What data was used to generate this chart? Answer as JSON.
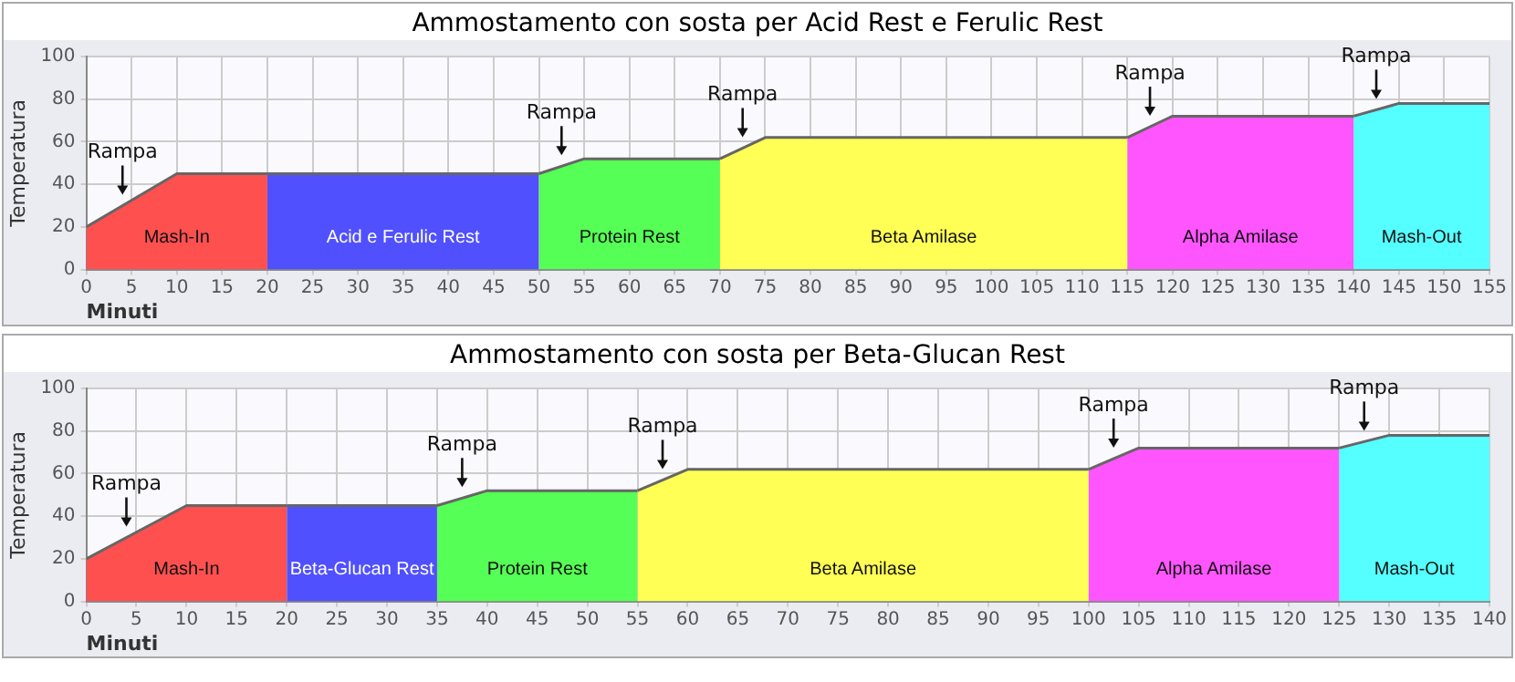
{
  "chart_data": [
    {
      "type": "area",
      "title": "Ammostamento con sosta per Acid Rest e Ferulic Rest",
      "xlabel": "Minuti",
      "ylabel": "Temperatura",
      "xlim": [
        0,
        155
      ],
      "xticks": [
        0,
        5,
        10,
        15,
        20,
        25,
        30,
        35,
        40,
        45,
        50,
        55,
        60,
        65,
        70,
        75,
        80,
        85,
        90,
        95,
        100,
        105,
        110,
        115,
        120,
        125,
        130,
        135,
        140,
        145,
        150,
        155
      ],
      "ylim": [
        0,
        100
      ],
      "yticks": [
        0,
        20,
        40,
        60,
        80,
        100
      ],
      "grid": true,
      "legend": false,
      "series": [
        {
          "name": "Mash-In",
          "color": "#ff5050",
          "x": [
            0,
            10,
            20
          ],
          "values": [
            20,
            45,
            45
          ]
        },
        {
          "name": "Acid e Ferulic Rest",
          "color": "#5050ff",
          "x": [
            20,
            50
          ],
          "values": [
            45,
            45
          ]
        },
        {
          "name": "Protein Rest",
          "color": "#55ff55",
          "x": [
            50,
            55,
            70
          ],
          "values": [
            45,
            52,
            52
          ]
        },
        {
          "name": "Beta Amilase",
          "color": "#ffff55",
          "x": [
            70,
            75,
            115
          ],
          "values": [
            52,
            62,
            62
          ]
        },
        {
          "name": "Alpha Amilase",
          "color": "#ff55ff",
          "x": [
            115,
            120,
            140
          ],
          "values": [
            62,
            72,
            72
          ]
        },
        {
          "name": "Mash-Out",
          "color": "#55ffff",
          "x": [
            140,
            145,
            155
          ],
          "values": [
            72,
            78,
            78
          ]
        }
      ],
      "annotations": [
        {
          "text": "Rampa",
          "x": 4,
          "y": 30
        },
        {
          "text": "Rampa",
          "x": 52.5,
          "y": 48.5
        },
        {
          "text": "Rampa",
          "x": 72.5,
          "y": 57
        },
        {
          "text": "Rampa",
          "x": 117.5,
          "y": 67
        },
        {
          "text": "Rampa",
          "x": 142.5,
          "y": 75
        }
      ]
    },
    {
      "type": "area",
      "title": "Ammostamento con sosta per Beta-Glucan Rest",
      "xlabel": "Minuti",
      "ylabel": "Temperatura",
      "xlim": [
        0,
        140
      ],
      "xticks": [
        0,
        5,
        10,
        15,
        20,
        25,
        30,
        35,
        40,
        45,
        50,
        55,
        60,
        65,
        70,
        75,
        80,
        85,
        90,
        95,
        100,
        105,
        110,
        115,
        120,
        125,
        130,
        135,
        140
      ],
      "ylim": [
        0,
        100
      ],
      "yticks": [
        0,
        20,
        40,
        60,
        80,
        100
      ],
      "grid": true,
      "legend": false,
      "series": [
        {
          "name": "Mash-In",
          "color": "#ff5050",
          "x": [
            0,
            10,
            20
          ],
          "values": [
            20,
            45,
            45
          ]
        },
        {
          "name": "Beta-Glucan Rest",
          "color": "#5050ff",
          "x": [
            20,
            35
          ],
          "values": [
            45,
            45
          ]
        },
        {
          "name": "Protein Rest",
          "color": "#55ff55",
          "x": [
            35,
            40,
            55
          ],
          "values": [
            45,
            52,
            52
          ]
        },
        {
          "name": "Beta Amilase",
          "color": "#ffff55",
          "x": [
            55,
            60,
            100
          ],
          "values": [
            52,
            62,
            62
          ]
        },
        {
          "name": "Alpha Amilase",
          "color": "#ff55ff",
          "x": [
            100,
            105,
            125
          ],
          "values": [
            62,
            72,
            72
          ]
        },
        {
          "name": "Mash-Out",
          "color": "#55ffff",
          "x": [
            125,
            130,
            140
          ],
          "values": [
            72,
            78,
            78
          ]
        }
      ],
      "annotations": [
        {
          "text": "Rampa",
          "x": 4,
          "y": 30
        },
        {
          "text": "Rampa",
          "x": 37.5,
          "y": 48.5
        },
        {
          "text": "Rampa",
          "x": 57.5,
          "y": 57
        },
        {
          "text": "Rampa",
          "x": 102.5,
          "y": 67
        },
        {
          "text": "Rampa",
          "x": 127.5,
          "y": 75
        }
      ]
    }
  ]
}
